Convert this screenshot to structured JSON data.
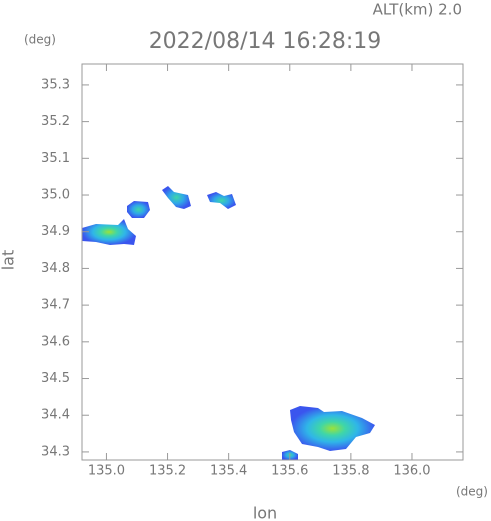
{
  "chart_data": {
    "type": "map",
    "title": "2022/08/14 16:28:19",
    "subtitle": "ALT(km) 2.0",
    "x_label": "lon",
    "y_label": "lat",
    "x_unit": "(deg)",
    "y_unit": "(deg)",
    "xlim": [
      134.92,
      136.167
    ],
    "ylim": [
      34.278,
      35.357
    ],
    "xticks": [
      {
        "value": 135,
        "label": "135.0"
      },
      135.2,
      135.4,
      135.6,
      135.8,
      {
        "value": 136,
        "label": "136.0"
      }
    ],
    "yticks": [
      34.3,
      34.4,
      34.5,
      34.6,
      34.7,
      34.8,
      34.9,
      {
        "value": 35,
        "label": "35.0"
      },
      35.1,
      35.2,
      35.3
    ]
  }
}
